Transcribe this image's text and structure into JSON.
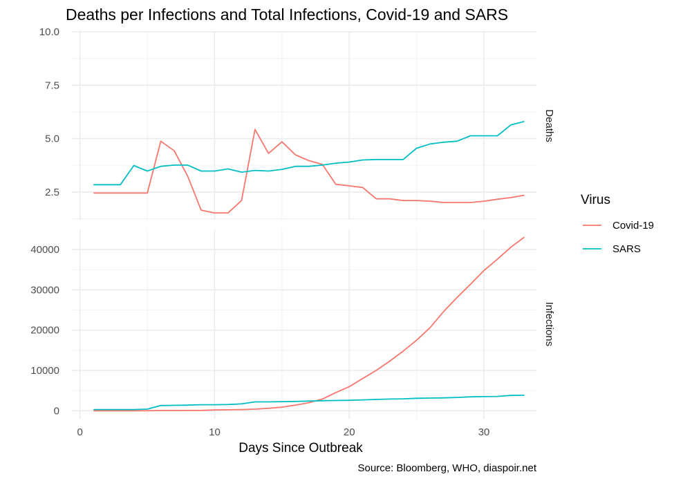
{
  "chart_data": {
    "type": "line",
    "title": "Deaths per Infections and Total Infections, Covid-19 and SARS",
    "xlabel": "Days Since Outbreak",
    "caption": "Source: Bloomberg, WHO, diaspoir.net",
    "x_ticks": [
      0,
      10,
      20,
      30
    ],
    "xlim": [
      -0.6,
      33.9
    ],
    "grid": true,
    "legend": {
      "title": "Virus",
      "position": "right",
      "entries": [
        {
          "name": "Covid-19",
          "color": "#F8766D"
        },
        {
          "name": "SARS",
          "color": "#00BFC4"
        }
      ]
    },
    "x": [
      1,
      2,
      3,
      4,
      5,
      6,
      7,
      8,
      9,
      10,
      11,
      12,
      13,
      14,
      15,
      16,
      17,
      18,
      19,
      20,
      21,
      22,
      23,
      24,
      25,
      26,
      27,
      28,
      29,
      30,
      31,
      32,
      33
    ],
    "panels": [
      {
        "strip": "Deaths",
        "ylim": [
          1.2,
          10.0
        ],
        "y_ticks": [
          2.5,
          5.0,
          7.5,
          10.0
        ],
        "y_tick_labels": [
          "2.5",
          "5.0",
          "7.5",
          "10.0"
        ],
        "series": [
          {
            "name": "Covid-19",
            "color": "#F8766D",
            "values": [
              2.45,
              2.45,
              2.45,
              2.45,
              2.45,
              4.88,
              4.43,
              3.24,
              1.65,
              1.52,
              1.52,
              2.1,
              5.43,
              4.31,
              4.85,
              4.24,
              3.97,
              3.79,
              2.86,
              2.79,
              2.71,
              2.18,
              2.18,
              2.1,
              2.1,
              2.07,
              2.01,
              2.01,
              2.01,
              2.07,
              2.16,
              2.24,
              2.35
            ]
          },
          {
            "name": "SARS",
            "color": "#00BFC4",
            "values": [
              2.84,
              2.84,
              2.84,
              3.74,
              3.48,
              3.7,
              3.76,
              3.76,
              3.48,
              3.48,
              3.58,
              3.43,
              3.51,
              3.48,
              3.56,
              3.7,
              3.7,
              3.76,
              3.85,
              3.9,
              4.0,
              4.02,
              4.02,
              4.02,
              4.55,
              4.75,
              4.83,
              4.88,
              5.13,
              5.13,
              5.13,
              5.64,
              5.8
            ]
          }
        ]
      },
      {
        "strip": "Infections",
        "ylim": [
          -2000,
          45000
        ],
        "y_ticks": [
          0,
          10000,
          20000,
          30000,
          40000
        ],
        "y_tick_labels": [
          "0",
          "10000",
          "20000",
          "30000",
          "40000"
        ],
        "series": [
          {
            "name": "Covid-19",
            "color": "#F8766D",
            "values": [
              0,
              0,
              0,
              0,
              0,
              50,
              60,
              70,
              100,
              200,
              250,
              300,
              400,
              600,
              900,
              1400,
              2000,
              2900,
              4500,
              6000,
              8000,
              10000,
              12300,
              14800,
              17500,
              20600,
              24600,
              28100,
              31400,
              34800,
              37600,
              40600,
              43100
            ]
          },
          {
            "name": "SARS",
            "color": "#00BFC4",
            "values": [
              300,
              300,
              300,
              300,
              400,
              1300,
              1350,
              1400,
              1500,
              1500,
              1550,
              1700,
              2200,
              2200,
              2250,
              2300,
              2400,
              2500,
              2550,
              2600,
              2700,
              2800,
              2900,
              2950,
              3100,
              3150,
              3200,
              3300,
              3450,
              3500,
              3550,
              3800,
              3850
            ]
          }
        ]
      }
    ]
  }
}
